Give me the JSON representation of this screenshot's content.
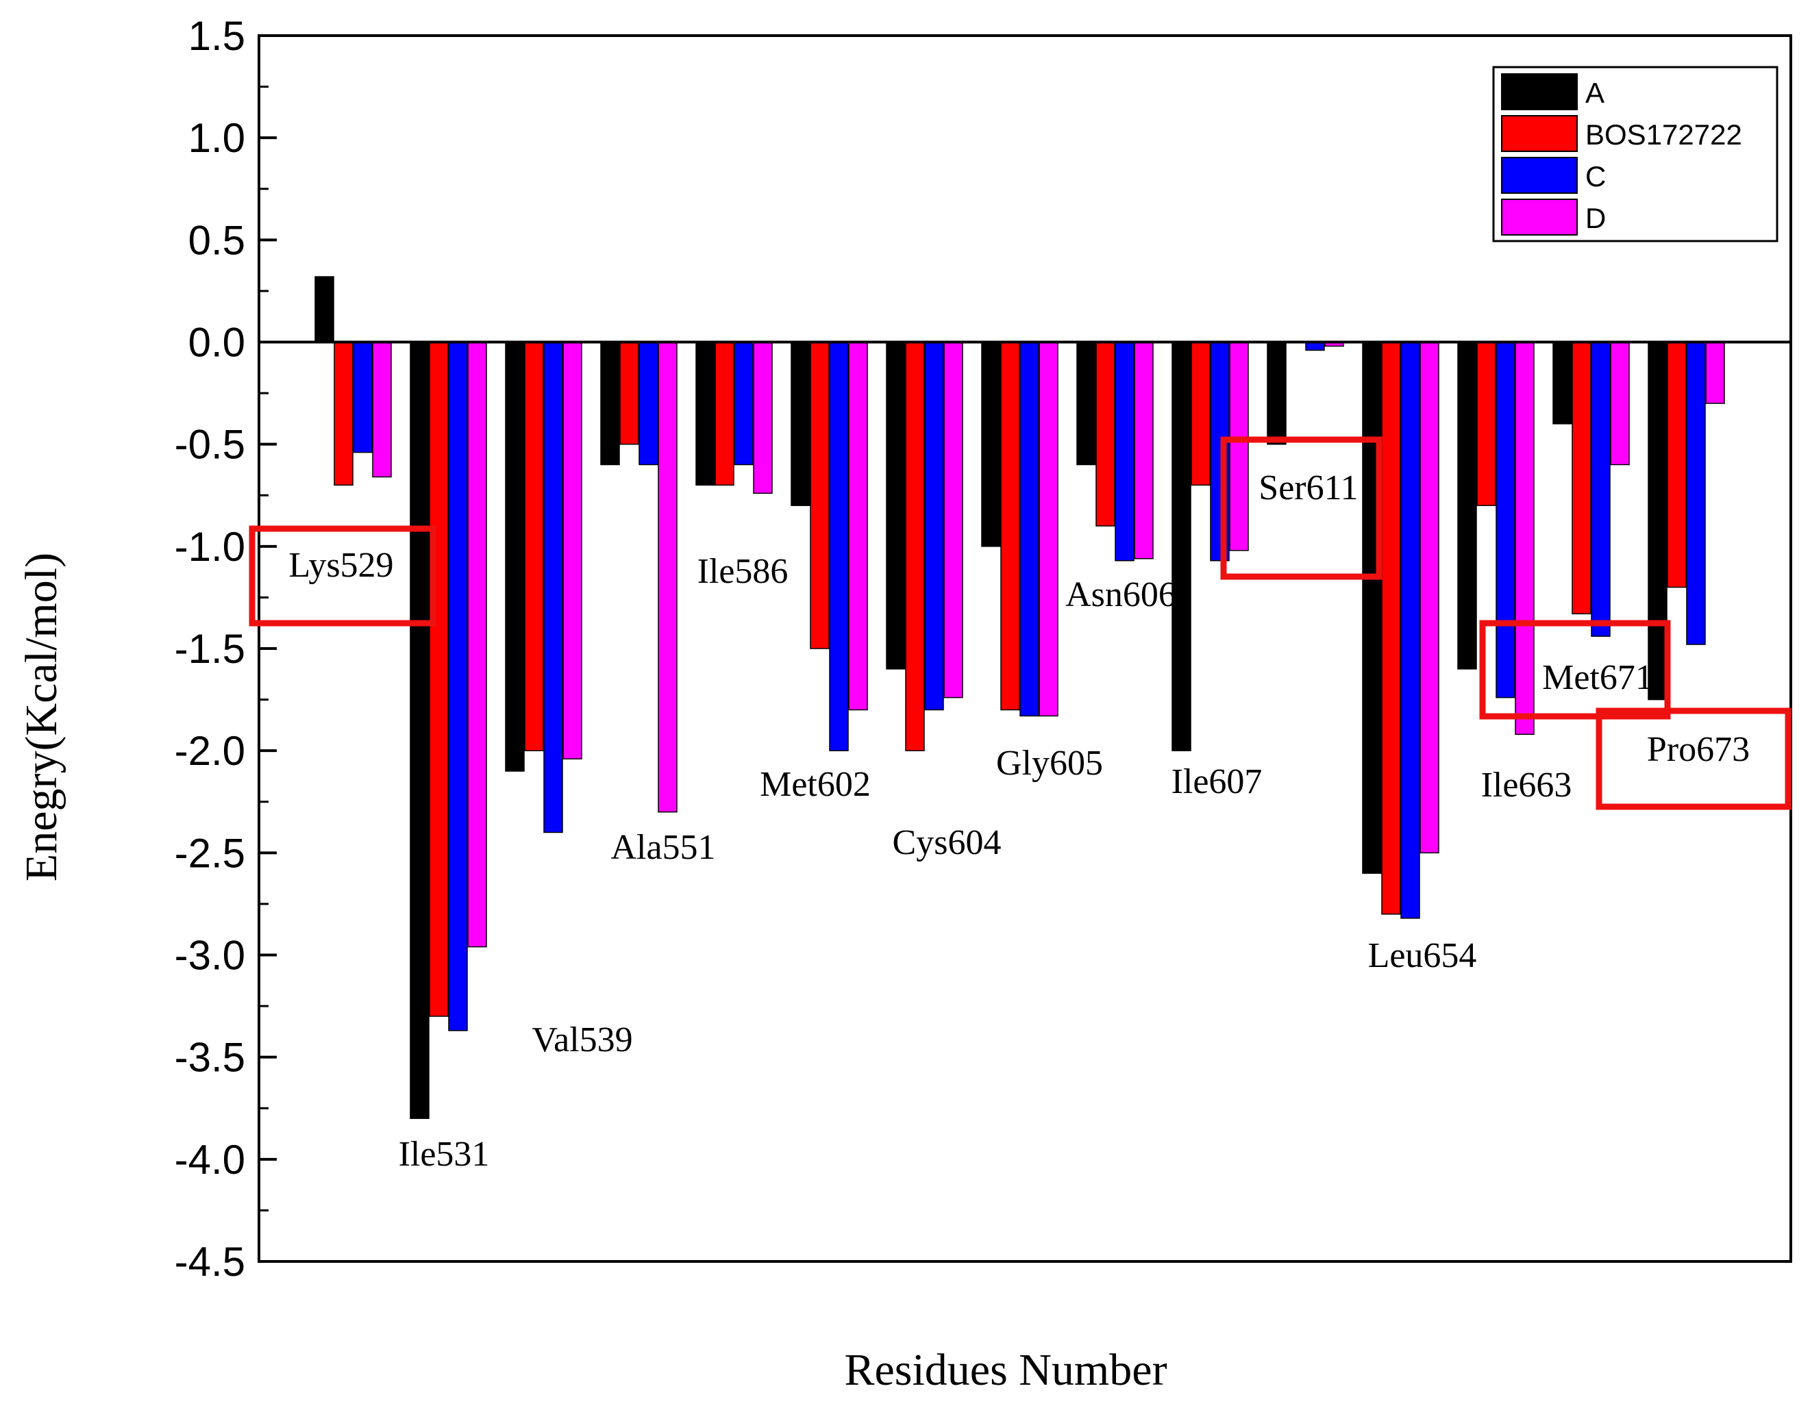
{
  "chart_data": {
    "type": "bar",
    "xlabel": "Residues Number",
    "ylabel": "Enegry(Kcal/mol)",
    "ylim": [
      -4.5,
      1.5
    ],
    "ytick_step": 0.5,
    "ytick_labels": [
      "1.5",
      "1.0",
      "0.5",
      "0.0",
      "-0.5",
      "-1.0",
      "-1.5",
      "-2.0",
      "-2.5",
      "-3.0",
      "-3.5",
      "-4.0",
      "-4.5"
    ],
    "legend_position": "top-right",
    "categories": [
      "Lys529",
      "Ile531",
      "Val539",
      "Ala551",
      "Ile586",
      "Met602",
      "Cys604",
      "Gly605",
      "Asn606",
      "Ile607",
      "Ser611",
      "Leu654",
      "Ile663",
      "Met671",
      "Pro673"
    ],
    "highlighted": [
      "Lys529",
      "Ser611",
      "Met671",
      "Pro673"
    ],
    "highlight_color": "#ee1111",
    "series": [
      {
        "name": "A",
        "color": "#000000",
        "values": [
          0.32,
          -3.8,
          -2.1,
          -0.6,
          -0.7,
          -0.8,
          -1.6,
          -1.0,
          -0.6,
          -2.0,
          -0.5,
          -2.6,
          -1.6,
          -0.4,
          -1.75
        ]
      },
      {
        "name": "BOS172722",
        "color": "#ff0000",
        "values": [
          -0.7,
          -3.3,
          -2.0,
          -0.5,
          -0.7,
          -1.5,
          -2.0,
          -1.8,
          -0.9,
          -0.7,
          0.0,
          -2.8,
          -0.8,
          -1.33,
          -1.2
        ]
      },
      {
        "name": "C",
        "color": "#0000ff",
        "values": [
          -0.54,
          -3.37,
          -2.4,
          -0.6,
          -0.6,
          -2.0,
          -1.8,
          -1.83,
          -1.07,
          -1.07,
          -0.04,
          -2.82,
          -1.74,
          -1.44,
          -1.48
        ]
      },
      {
        "name": "D",
        "color": "#ff00ff",
        "values": [
          -0.66,
          -2.96,
          -2.04,
          -2.3,
          -0.74,
          -1.8,
          -1.74,
          -1.83,
          -1.06,
          -1.02,
          -0.02,
          -2.5,
          -1.92,
          -0.6,
          -0.3
        ]
      }
    ]
  }
}
